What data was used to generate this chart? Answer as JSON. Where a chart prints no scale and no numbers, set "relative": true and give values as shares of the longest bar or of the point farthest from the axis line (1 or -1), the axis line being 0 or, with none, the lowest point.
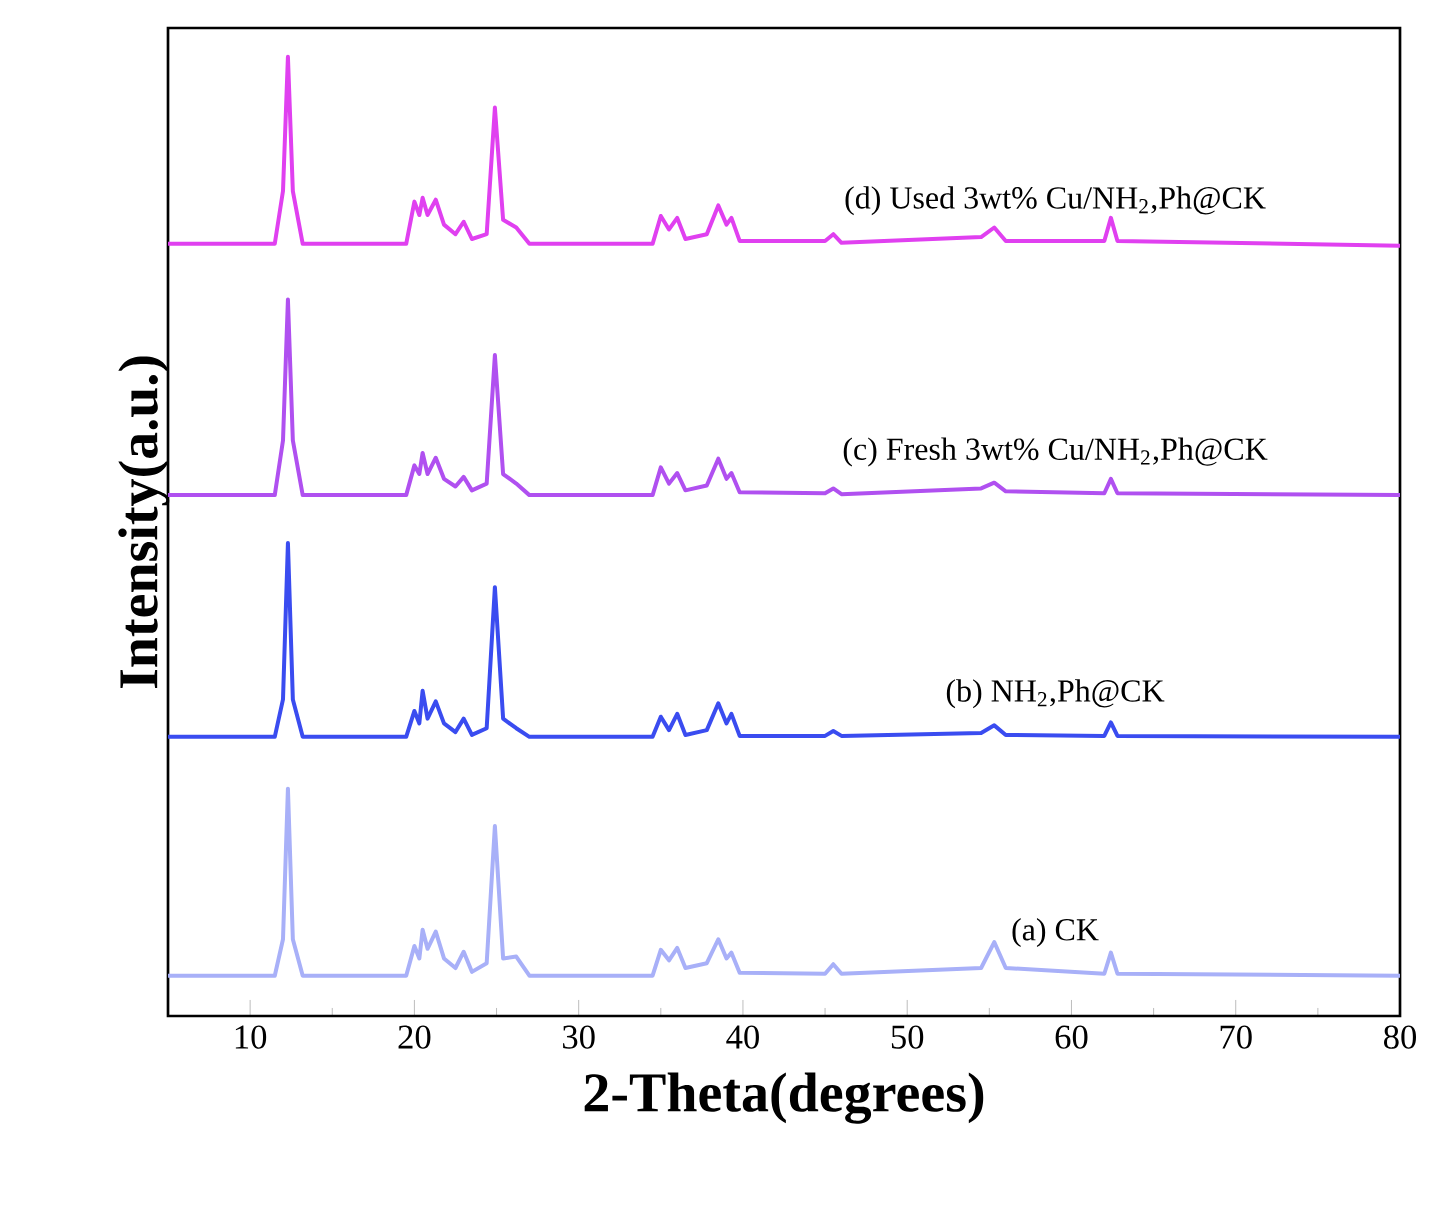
{
  "chart_data": {
    "type": "line",
    "relative": true,
    "xlabel": "2-Theta(degrees)",
    "ylabel": "Intensity(a.u.)",
    "xlim": [
      5,
      80
    ],
    "xticks": [
      10,
      20,
      30,
      40,
      50,
      60,
      70,
      80
    ],
    "x": [
      5,
      11.5,
      12.0,
      12.3,
      12.6,
      13.2,
      19.5,
      20.0,
      20.3,
      20.5,
      20.8,
      21.3,
      21.8,
      22.5,
      23.0,
      23.5,
      24.4,
      24.9,
      25.4,
      26.2,
      27,
      34.5,
      35.0,
      35.5,
      36.0,
      36.5,
      37.8,
      38.5,
      39.0,
      39.3,
      39.8,
      45.0,
      45.5,
      46,
      54.5,
      55.3,
      56,
      62.0,
      62.4,
      62.8,
      80
    ],
    "series": [
      {
        "name": "(d) Used 3wt% Cu/NH$_{2}$,Ph@CK",
        "color": "#e040f0",
        "values": [
          0.805,
          0.805,
          0.86,
          1.0,
          0.86,
          0.805,
          0.805,
          0.849,
          0.835,
          0.853,
          0.835,
          0.851,
          0.825,
          0.815,
          0.828,
          0.81,
          0.815,
          0.947,
          0.83,
          0.822,
          0.805,
          0.805,
          0.834,
          0.82,
          0.832,
          0.81,
          0.815,
          0.845,
          0.825,
          0.832,
          0.808,
          0.808,
          0.815,
          0.806,
          0.812,
          0.822,
          0.808,
          0.808,
          0.832,
          0.808,
          0.803
        ]
      },
      {
        "name": "(c) Fresh 3wt% Cu/NH$_{2}$,Ph@CK",
        "color": "#b050f0",
        "values": [
          0.543,
          0.543,
          0.6,
          0.747,
          0.6,
          0.543,
          0.543,
          0.574,
          0.565,
          0.587,
          0.565,
          0.582,
          0.56,
          0.552,
          0.562,
          0.548,
          0.555,
          0.689,
          0.565,
          0.555,
          0.543,
          0.543,
          0.572,
          0.555,
          0.566,
          0.548,
          0.553,
          0.581,
          0.56,
          0.566,
          0.546,
          0.545,
          0.55,
          0.544,
          0.55,
          0.556,
          0.547,
          0.545,
          0.56,
          0.545,
          0.543
        ]
      },
      {
        "name": "(b) NH$_{2}$,Ph@CK",
        "color": "#3a4cf0",
        "values": [
          0.291,
          0.291,
          0.33,
          0.493,
          0.33,
          0.291,
          0.291,
          0.318,
          0.305,
          0.339,
          0.31,
          0.328,
          0.305,
          0.296,
          0.31,
          0.293,
          0.3,
          0.447,
          0.31,
          0.3,
          0.291,
          0.291,
          0.312,
          0.298,
          0.315,
          0.293,
          0.298,
          0.326,
          0.305,
          0.315,
          0.292,
          0.292,
          0.297,
          0.292,
          0.295,
          0.303,
          0.293,
          0.292,
          0.306,
          0.292,
          0.291
        ]
      },
      {
        "name": "(a) CK",
        "color": "#a8b0f8",
        "values": [
          0.042,
          0.042,
          0.08,
          0.237,
          0.08,
          0.042,
          0.042,
          0.073,
          0.06,
          0.09,
          0.07,
          0.088,
          0.06,
          0.05,
          0.067,
          0.046,
          0.055,
          0.198,
          0.06,
          0.062,
          0.042,
          0.042,
          0.069,
          0.058,
          0.071,
          0.05,
          0.055,
          0.08,
          0.06,
          0.066,
          0.045,
          0.044,
          0.054,
          0.044,
          0.05,
          0.077,
          0.05,
          0.044,
          0.066,
          0.044,
          0.042
        ]
      }
    ]
  }
}
